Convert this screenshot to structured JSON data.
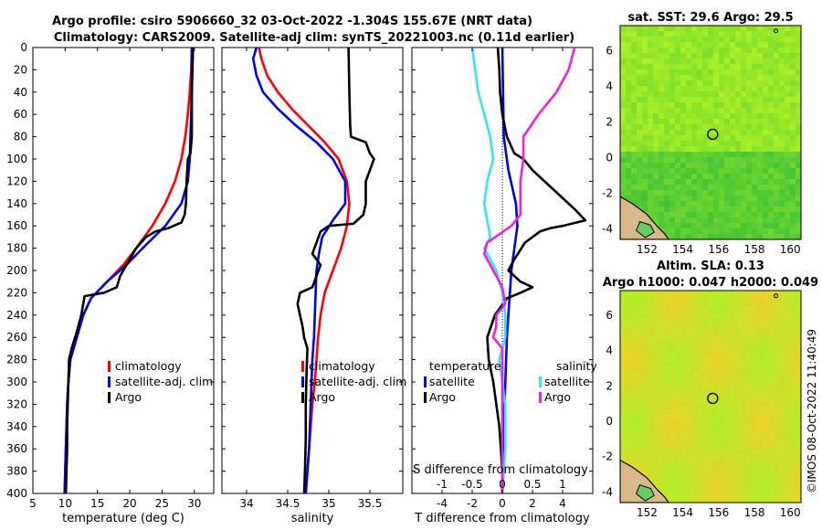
{
  "header": {
    "line1": "Argo profile: csiro 5906660_32 03-Oct-2022 -1.304S 155.67E (NRT data)",
    "line2": "Climatology: CARS2009. Satellite-adj clim: synTS_20221003.nc (0.11d earlier)"
  },
  "watermark": "©IMOS 08-Oct-2022 11:40:49",
  "colors": {
    "climatology": "#ff0000",
    "satellite": "#0000ee",
    "argo": "#000000",
    "sat_diff": "#33e5ee",
    "argo_sdiff": "#ee22dd"
  },
  "depth_axis": {
    "ylim": [
      0,
      400
    ],
    "ticks": [
      0,
      20,
      40,
      60,
      80,
      100,
      120,
      140,
      160,
      180,
      200,
      220,
      240,
      260,
      280,
      300,
      320,
      340,
      360,
      380,
      400
    ]
  },
  "chart_data": [
    {
      "type": "line",
      "id": "temperature",
      "xlabel": "temperature (deg C)",
      "xlim": [
        5,
        33
      ],
      "xticks": [
        5,
        10,
        15,
        20,
        25,
        30
      ],
      "legend": [
        "climatology",
        "satellite-adj. clim",
        "Argo"
      ],
      "series": [
        {
          "name": "climatology",
          "points": [
            [
              29.6,
              0
            ],
            [
              29.5,
              20
            ],
            [
              29.3,
              40
            ],
            [
              29.0,
              60
            ],
            [
              28.6,
              80
            ],
            [
              28.0,
              100
            ],
            [
              27.0,
              120
            ],
            [
              25.5,
              140
            ],
            [
              23.5,
              160
            ],
            [
              21.0,
              180
            ],
            [
              19.0,
              195
            ],
            [
              16.5,
              210
            ],
            [
              14.0,
              225
            ],
            [
              12.8,
              240
            ],
            [
              11.8,
              260
            ],
            [
              10.8,
              280
            ],
            [
              10.5,
              300
            ],
            [
              10.3,
              320
            ],
            [
              10.2,
              340
            ],
            [
              10.1,
              360
            ],
            [
              10.0,
              380
            ],
            [
              9.9,
              400
            ]
          ]
        },
        {
          "name": "satellite-adj. clim",
          "points": [
            [
              29.6,
              0
            ],
            [
              29.6,
              20
            ],
            [
              29.6,
              40
            ],
            [
              29.5,
              60
            ],
            [
              29.4,
              80
            ],
            [
              29.3,
              100
            ],
            [
              29.0,
              120
            ],
            [
              28.0,
              140
            ],
            [
              25.5,
              160
            ],
            [
              22.0,
              180
            ],
            [
              19.5,
              195
            ],
            [
              16.5,
              210
            ],
            [
              14.0,
              225
            ],
            [
              12.8,
              240
            ],
            [
              11.8,
              260
            ],
            [
              10.8,
              280
            ],
            [
              10.5,
              300
            ],
            [
              10.3,
              320
            ],
            [
              10.2,
              340
            ],
            [
              10.1,
              360
            ],
            [
              10.0,
              380
            ],
            [
              9.9,
              400
            ]
          ]
        },
        {
          "name": "Argo",
          "points": [
            [
              29.8,
              0
            ],
            [
              29.7,
              20
            ],
            [
              29.6,
              40
            ],
            [
              29.6,
              60
            ],
            [
              29.6,
              80
            ],
            [
              29.4,
              95
            ],
            [
              29.0,
              100
            ],
            [
              28.8,
              120
            ],
            [
              28.7,
              140
            ],
            [
              28.5,
              150
            ],
            [
              28.0,
              157
            ],
            [
              26.0,
              162
            ],
            [
              24.0,
              165
            ],
            [
              22.5,
              170
            ],
            [
              21.0,
              180
            ],
            [
              20.0,
              190
            ],
            [
              19.0,
              200
            ],
            [
              18.5,
              205
            ],
            [
              18.0,
              215
            ],
            [
              16.0,
              220
            ],
            [
              13.0,
              223
            ],
            [
              12.5,
              240
            ],
            [
              11.8,
              255
            ],
            [
              11.0,
              270
            ],
            [
              10.6,
              280
            ],
            [
              10.5,
              300
            ],
            [
              10.4,
              320
            ],
            [
              10.3,
              340
            ],
            [
              10.3,
              360
            ],
            [
              10.2,
              380
            ],
            [
              10.1,
              400
            ]
          ]
        }
      ]
    },
    {
      "type": "line",
      "id": "salinity",
      "xlabel": "salinity",
      "xlim": [
        33.7,
        35.9
      ],
      "xticks": [
        34,
        34.5,
        35,
        35.5
      ],
      "legend": [
        "climatology",
        "satellite-adj. clim",
        "Argo"
      ],
      "series": [
        {
          "name": "climatology",
          "points": [
            [
              34.15,
              0
            ],
            [
              34.18,
              10
            ],
            [
              34.25,
              25
            ],
            [
              34.38,
              40
            ],
            [
              34.55,
              55
            ],
            [
              34.75,
              70
            ],
            [
              34.95,
              85
            ],
            [
              35.12,
              100
            ],
            [
              35.22,
              120
            ],
            [
              35.25,
              140
            ],
            [
              35.22,
              160
            ],
            [
              35.15,
              180
            ],
            [
              35.05,
              200
            ],
            [
              34.95,
              220
            ],
            [
              34.9,
              240
            ],
            [
              34.87,
              260
            ],
            [
              34.85,
              280
            ],
            [
              34.83,
              300
            ],
            [
              34.8,
              320
            ],
            [
              34.78,
              340
            ],
            [
              34.76,
              360
            ],
            [
              34.74,
              380
            ],
            [
              34.72,
              400
            ]
          ]
        },
        {
          "name": "satellite-adj. clim",
          "points": [
            [
              34.12,
              0
            ],
            [
              34.08,
              10
            ],
            [
              34.12,
              25
            ],
            [
              34.2,
              40
            ],
            [
              34.38,
              55
            ],
            [
              34.6,
              70
            ],
            [
              34.85,
              85
            ],
            [
              35.05,
              100
            ],
            [
              35.2,
              120
            ],
            [
              35.2,
              140
            ],
            [
              35.05,
              155
            ],
            [
              34.92,
              170
            ],
            [
              34.88,
              185
            ],
            [
              34.85,
              200
            ],
            [
              34.84,
              220
            ],
            [
              34.83,
              240
            ],
            [
              34.82,
              260
            ],
            [
              34.8,
              280
            ],
            [
              34.79,
              300
            ],
            [
              34.78,
              320
            ],
            [
              34.77,
              340
            ],
            [
              34.76,
              360
            ],
            [
              34.74,
              380
            ],
            [
              34.72,
              400
            ]
          ]
        },
        {
          "name": "Argo",
          "points": [
            [
              35.24,
              0
            ],
            [
              35.25,
              40
            ],
            [
              35.26,
              70
            ],
            [
              35.27,
              80
            ],
            [
              35.45,
              85
            ],
            [
              35.5,
              95
            ],
            [
              35.55,
              100
            ],
            [
              35.5,
              110
            ],
            [
              35.45,
              120
            ],
            [
              35.45,
              140
            ],
            [
              35.42,
              150
            ],
            [
              35.3,
              158
            ],
            [
              35.0,
              160
            ],
            [
              34.9,
              165
            ],
            [
              34.85,
              175
            ],
            [
              34.8,
              185
            ],
            [
              34.9,
              195
            ],
            [
              34.85,
              205
            ],
            [
              34.8,
              215
            ],
            [
              34.65,
              220
            ],
            [
              34.62,
              230
            ],
            [
              34.65,
              240
            ],
            [
              34.68,
              250
            ],
            [
              34.7,
              260
            ],
            [
              34.74,
              270
            ],
            [
              34.73,
              290
            ],
            [
              34.72,
              320
            ],
            [
              34.72,
              350
            ],
            [
              34.71,
              380
            ],
            [
              34.7,
              400
            ]
          ]
        }
      ]
    },
    {
      "type": "line",
      "id": "differences",
      "xlabel": "T difference from climatology",
      "xlim": [
        -6,
        6
      ],
      "xticks": [
        -4,
        -2,
        0,
        2,
        4
      ],
      "s_axis": {
        "label": "S difference from climatology",
        "ticks": [
          "-1",
          "-0.5",
          "0",
          "0.5",
          "1"
        ],
        "values": [
          -1,
          -0.5,
          0,
          0.5,
          1
        ]
      },
      "legend_titles": {
        "temperature": "temperature",
        "salinity": "salinity"
      },
      "legend_items": {
        "temperature": [
          "satellite",
          "Argo"
        ],
        "salinity": [
          "satellite",
          "Argo"
        ]
      },
      "series": [
        {
          "name": "T satellite",
          "points": [
            [
              0.0,
              0
            ],
            [
              0.05,
              40
            ],
            [
              0.1,
              80
            ],
            [
              0.4,
              110
            ],
            [
              0.9,
              140
            ],
            [
              1.0,
              160
            ],
            [
              0.8,
              180
            ],
            [
              0.6,
              200
            ],
            [
              0.5,
              220
            ],
            [
              0.4,
              240
            ],
            [
              0.3,
              260
            ],
            [
              0.2,
              300
            ],
            [
              0.1,
              340
            ],
            [
              0.0,
              400
            ]
          ]
        },
        {
          "name": "T Argo",
          "points": [
            [
              -0.3,
              0
            ],
            [
              -0.2,
              20
            ],
            [
              -0.15,
              40
            ],
            [
              0.0,
              60
            ],
            [
              0.3,
              80
            ],
            [
              0.8,
              95
            ],
            [
              1.4,
              100
            ],
            [
              2.0,
              110
            ],
            [
              3.2,
              125
            ],
            [
              4.8,
              145
            ],
            [
              5.5,
              155
            ],
            [
              4.0,
              160
            ],
            [
              3.2,
              162
            ],
            [
              2.5,
              165
            ],
            [
              1.5,
              175
            ],
            [
              0.8,
              190
            ],
            [
              0.4,
              200
            ],
            [
              1.2,
              210
            ],
            [
              2.0,
              215
            ],
            [
              1.2,
              220
            ],
            [
              0.3,
              225
            ],
            [
              -0.5,
              240
            ],
            [
              -1.0,
              260
            ],
            [
              -0.9,
              280
            ],
            [
              -0.6,
              300
            ],
            [
              -0.4,
              320
            ],
            [
              -0.2,
              340
            ],
            [
              -0.1,
              360
            ],
            [
              0.0,
              380
            ],
            [
              0.0,
              400
            ]
          ]
        },
        {
          "name": "S satellite",
          "points": [
            [
              -0.5,
              0
            ],
            [
              -0.45,
              20
            ],
            [
              -0.4,
              40
            ],
            [
              -0.3,
              60
            ],
            [
              -0.2,
              80
            ],
            [
              -0.15,
              100
            ],
            [
              -0.25,
              120
            ],
            [
              -0.3,
              140
            ],
            [
              -0.25,
              155
            ],
            [
              -0.2,
              170
            ],
            [
              -0.3,
              180
            ],
            [
              -0.2,
              190
            ],
            [
              -0.1,
              200
            ],
            [
              0.0,
              220
            ],
            [
              0.05,
              240
            ],
            [
              0.05,
              260
            ],
            [
              -0.05,
              280
            ],
            [
              0.0,
              300
            ],
            [
              0.05,
              320
            ],
            [
              0.05,
              360
            ],
            [
              0.0,
              400
            ]
          ]
        },
        {
          "name": "S Argo",
          "points": [
            [
              1.2,
              0
            ],
            [
              1.1,
              20
            ],
            [
              0.9,
              40
            ],
            [
              0.6,
              60
            ],
            [
              0.35,
              80
            ],
            [
              0.35,
              100
            ],
            [
              0.3,
              120
            ],
            [
              0.3,
              150
            ],
            [
              0.15,
              160
            ],
            [
              -0.25,
              175
            ],
            [
              -0.3,
              185
            ],
            [
              -0.2,
              195
            ],
            [
              0.0,
              215
            ],
            [
              0.05,
              230
            ],
            [
              -0.1,
              240
            ],
            [
              -0.1,
              250
            ],
            [
              -0.15,
              260
            ],
            [
              0.0,
              270
            ],
            [
              0.0,
              400
            ]
          ]
        }
      ]
    },
    {
      "type": "heatmap",
      "id": "sst_map",
      "title": "sat. SST: 29.6 Argo: 29.5",
      "xticks": [
        152,
        154,
        156,
        158,
        160
      ],
      "yticks": [
        6,
        4,
        2,
        0,
        -2,
        -4
      ],
      "xlim": [
        150.5,
        160.6
      ],
      "ylim": [
        -4.6,
        7.4
      ],
      "marker": {
        "lon": 155.67,
        "lat": 1.3
      },
      "values_note": "warmer north of equator (lighter green) cooler south (darker green)"
    },
    {
      "type": "heatmap",
      "id": "sla_map",
      "title1": "Altim. SLA: 0.13",
      "title2": "Argo h1000: 0.047 h2000: 0.049",
      "xticks": [
        152,
        154,
        156,
        158,
        160
      ],
      "yticks": [
        6,
        4,
        2,
        0,
        -2,
        -4
      ],
      "xlim": [
        150.5,
        160.6
      ],
      "ylim": [
        -4.6,
        7.4
      ],
      "marker": {
        "lon": 155.67,
        "lat": 1.3
      }
    }
  ]
}
